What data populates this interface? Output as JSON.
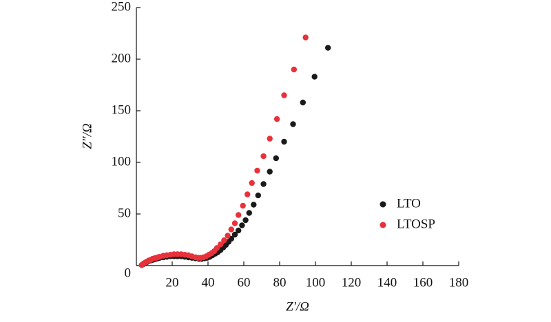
{
  "chart_data": {
    "type": "scatter",
    "xlabel": "Z′/Ω",
    "ylabel": "Z″/Ω",
    "xlim": [
      0,
      180
    ],
    "xticks": [
      20,
      40,
      60,
      80,
      100,
      120,
      140,
      160,
      180
    ],
    "ylim": [
      0,
      250
    ],
    "yticks": [
      0,
      50,
      100,
      150,
      200,
      250
    ],
    "legend": "lower right",
    "series": [
      {
        "name": "LTO",
        "color": "#1a1a1a",
        "x": [
          3,
          4,
          5,
          6,
          7,
          8,
          9,
          10,
          11,
          12,
          13,
          15,
          17,
          19,
          21,
          23,
          25,
          27,
          29,
          31,
          33,
          35,
          36.5,
          38,
          39.5,
          41,
          42.5,
          44,
          45.5,
          47,
          48.5,
          50,
          51.5,
          53,
          55,
          57,
          59,
          61,
          63,
          65.5,
          68,
          71,
          74.5,
          78,
          82.5,
          87.5,
          93,
          99.5,
          107
        ],
        "values": [
          0.5,
          1.5,
          2.5,
          3.5,
          4.5,
          5,
          5.5,
          6,
          6.5,
          7,
          7.5,
          8,
          8.5,
          9,
          9,
          9,
          9,
          8.5,
          8,
          7.5,
          7,
          6.5,
          6.5,
          7,
          7.5,
          8.5,
          10,
          11.5,
          13,
          15,
          17.5,
          20,
          23,
          26,
          30,
          34,
          39,
          44,
          51,
          59,
          68,
          79,
          91,
          104,
          120,
          137,
          158,
          183,
          211
        ]
      },
      {
        "name": "LTOSP",
        "color": "#e8313b",
        "x": [
          3,
          4,
          5,
          6,
          7,
          8,
          9,
          10,
          11,
          12,
          13,
          15,
          17,
          19,
          21,
          23,
          25,
          27,
          29,
          31,
          33,
          34.5,
          36,
          37.5,
          39,
          40.5,
          42,
          43.5,
          45,
          47,
          49,
          51,
          53,
          55,
          57,
          59.5,
          62,
          64.5,
          67.5,
          71,
          74.5,
          78.5,
          82.5,
          88,
          94.5
        ],
        "values": [
          0.5,
          2,
          3,
          4,
          5,
          5.5,
          6.5,
          7,
          7.5,
          8,
          8.5,
          9.5,
          10,
          10.5,
          11,
          11,
          11,
          10.5,
          10,
          9,
          8,
          7.5,
          7.5,
          8,
          9,
          10.5,
          12,
          14,
          17,
          20.5,
          24.5,
          29,
          35,
          41,
          49,
          58,
          69,
          80,
          92,
          106,
          123,
          142,
          165,
          190,
          221
        ]
      }
    ]
  }
}
